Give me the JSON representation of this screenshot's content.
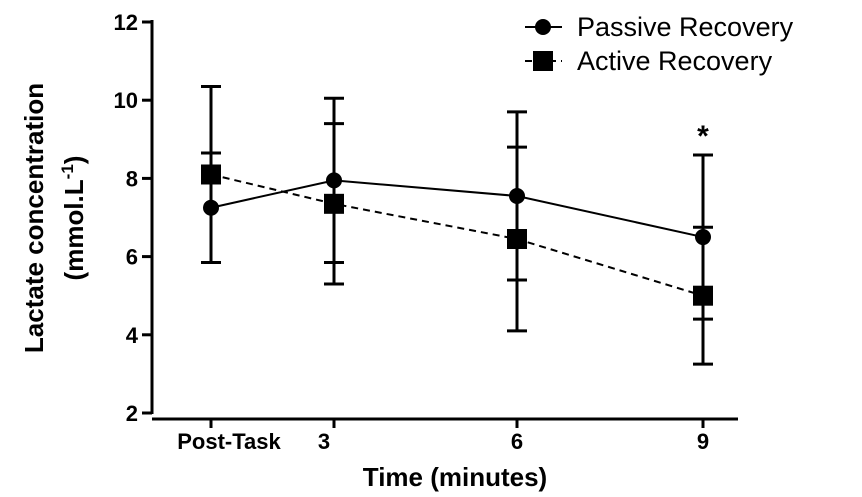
{
  "chart_data": {
    "type": "line",
    "categories": [
      "Post-Task",
      "3",
      "6",
      "9"
    ],
    "series": [
      {
        "name": "Passive Recovery",
        "marker": "circle",
        "line_style": "solid",
        "values": [
          7.25,
          7.95,
          7.55,
          6.5
        ],
        "error": [
          1.4,
          2.1,
          2.15,
          2.1
        ]
      },
      {
        "name": "Active Recovery",
        "marker": "square",
        "line_style": "dashed",
        "values": [
          8.1,
          7.35,
          6.45,
          5.0
        ],
        "error": [
          2.25,
          2.05,
          2.35,
          1.75
        ]
      }
    ],
    "ylabel_line1": "Lactate concentration",
    "ylabel_line2": "(mmol.L",
    "ylabel_sup": "-1",
    "ylabel_close": ")",
    "xlabel": "Time (minutes)",
    "ylim": [
      2,
      12
    ],
    "yticks": [
      "2",
      "4",
      "6",
      "8",
      "10",
      "12"
    ],
    "annotation": {
      "category_index": 3,
      "text": "*"
    },
    "legend_position": "top-right",
    "color": "#000000"
  }
}
